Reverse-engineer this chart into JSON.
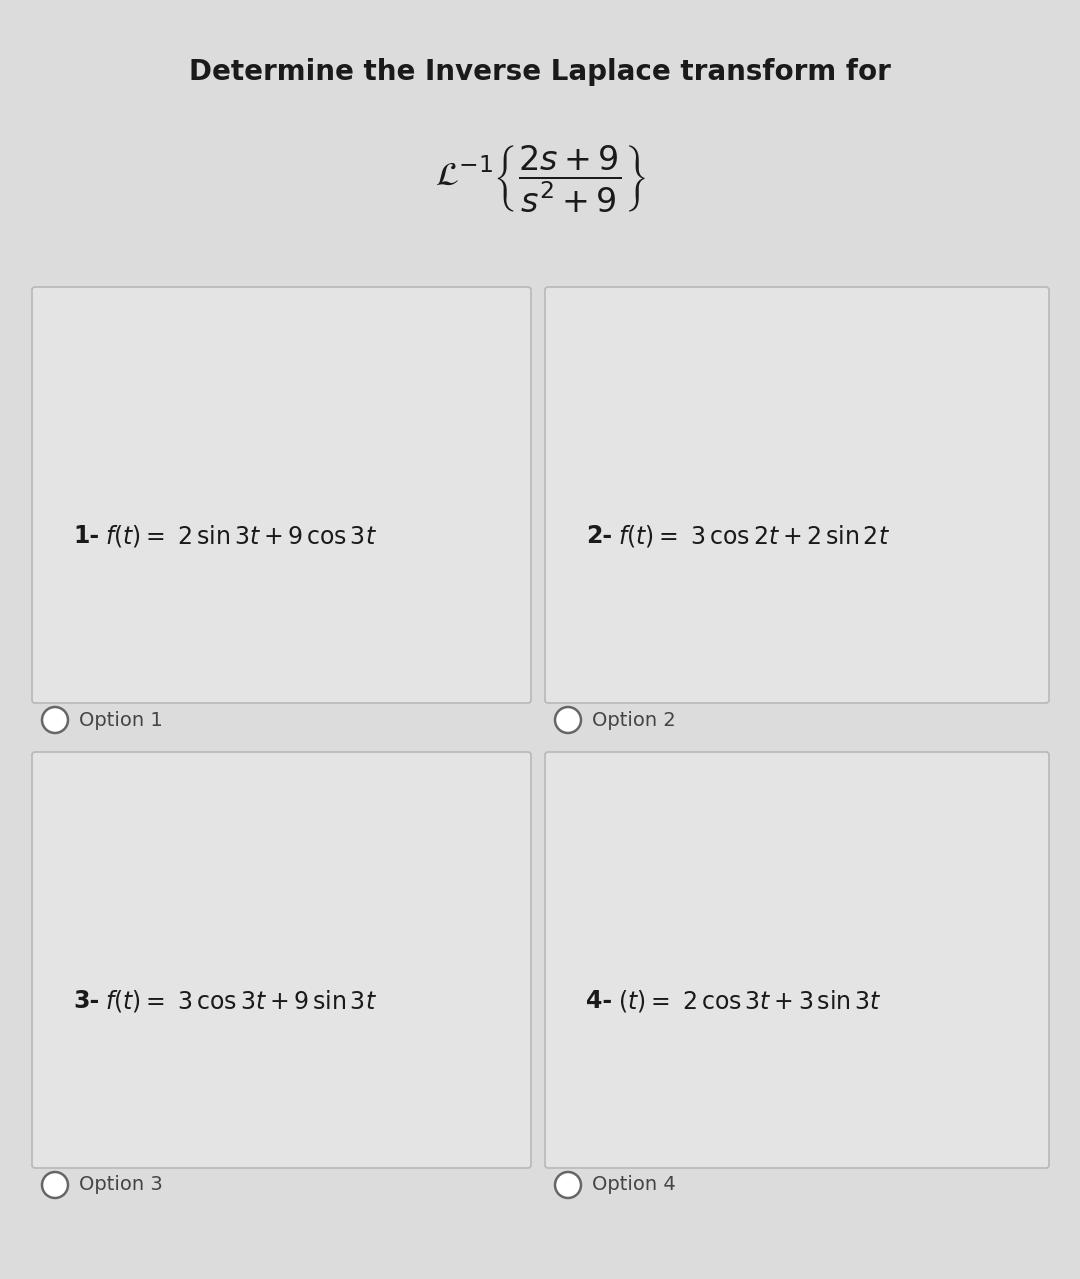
{
  "title": "Determine the Inverse Laplace transform for",
  "title_fontsize": 20,
  "bg_color": "#dcdcdc",
  "card_color": "#e4e4e4",
  "card_border_color": "#b8b8b8",
  "options": [
    {
      "number": "1-",
      "label": "$f(t) = \\ 2\\,\\sin 3t + 9\\,\\cos 3t$",
      "option_label": "Option 1",
      "row": 0,
      "col": 0
    },
    {
      "number": "2-",
      "label": "$f(t) = \\ 3\\,\\cos 2t + 2\\,\\sin 2t$",
      "option_label": "Option 2",
      "row": 0,
      "col": 1
    },
    {
      "number": "3-",
      "label": "$f(t) = \\ 3\\,\\cos 3t + 9\\,\\sin 3t$",
      "option_label": "Option 3",
      "row": 1,
      "col": 0
    },
    {
      "number": "4-",
      "label": "$(t) = \\ 2\\,\\cos 3t + 3\\,\\sin 3t$",
      "option_label": "Option 4",
      "row": 1,
      "col": 1
    }
  ],
  "text_color": "#1a1a1a",
  "option_label_color": "#444444",
  "radio_color": "#666666"
}
